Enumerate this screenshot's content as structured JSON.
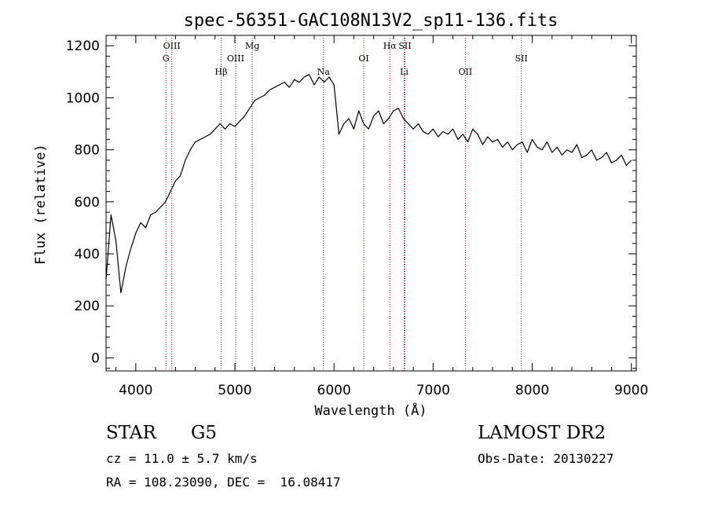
{
  "chart_data": {
    "type": "line",
    "title": "spec-56351-GAC108N13V2_sp11-136.fits",
    "xlabel": "Wavelength (Å)",
    "ylabel": "Flux (relative)",
    "xlim": [
      3700,
      9050
    ],
    "ylim": [
      -50,
      1240
    ],
    "xticks": [
      4000,
      5000,
      6000,
      7000,
      8000,
      9000
    ],
    "yticks": [
      0,
      200,
      400,
      600,
      800,
      1000,
      1200
    ],
    "grid": false,
    "series": [
      {
        "x": [
          3700,
          3750,
          3800,
          3850,
          3900,
          3950,
          4000,
          4050,
          4100,
          4150,
          4200,
          4250,
          4300,
          4350,
          4400,
          4450,
          4500,
          4550,
          4600,
          4650,
          4700,
          4750,
          4800,
          4850,
          4900,
          4950,
          5000,
          5050,
          5100,
          5150,
          5200,
          5250,
          5300,
          5350,
          5400,
          5450,
          5500,
          5550,
          5600,
          5650,
          5700,
          5750,
          5800,
          5850,
          5900,
          5950,
          6000,
          6050,
          6100,
          6150,
          6200,
          6250,
          6300,
          6350,
          6400,
          6450,
          6500,
          6550,
          6600,
          6650,
          6700,
          6750,
          6800,
          6850,
          6900,
          6950,
          7000,
          7050,
          7100,
          7150,
          7200,
          7250,
          7300,
          7350,
          7400,
          7450,
          7500,
          7550,
          7600,
          7650,
          7700,
          7750,
          7800,
          7850,
          7900,
          7950,
          8000,
          8050,
          8100,
          8150,
          8200,
          8250,
          8300,
          8350,
          8400,
          8450,
          8500,
          8550,
          8600,
          8650,
          8700,
          8750,
          8800,
          8850,
          8900,
          8950,
          9000
        ],
        "y": [
          300,
          550,
          450,
          250,
          350,
          420,
          480,
          520,
          500,
          550,
          560,
          580,
          600,
          640,
          680,
          700,
          760,
          800,
          830,
          840,
          850,
          860,
          880,
          900,
          880,
          900,
          890,
          910,
          930,
          960,
          990,
          1000,
          1010,
          1030,
          1040,
          1050,
          1060,
          1040,
          1070,
          1060,
          1080,
          1090,
          1050,
          1080,
          1060,
          1080,
          1050,
          860,
          900,
          920,
          880,
          950,
          900,
          880,
          930,
          950,
          900,
          920,
          950,
          960,
          920,
          900,
          880,
          900,
          870,
          860,
          880,
          850,
          870,
          860,
          880,
          840,
          860,
          830,
          880,
          860,
          820,
          850,
          830,
          840,
          810,
          830,
          800,
          820,
          830,
          790,
          840,
          810,
          800,
          830,
          790,
          810,
          780,
          800,
          790,
          820,
          770,
          780,
          800,
          760,
          770,
          790,
          750,
          760,
          780,
          740,
          760
        ]
      }
    ],
    "lines": [
      {
        "label": "OIII",
        "x": 4363
      },
      {
        "label": "G",
        "x": 4305
      },
      {
        "label": "Hβ",
        "x": 4861
      },
      {
        "label": "OIII",
        "x": 5007
      },
      {
        "label": "Mg",
        "x": 5175
      },
      {
        "label": "Na",
        "x": 5893
      },
      {
        "label": "OI",
        "x": 6300
      },
      {
        "label": "Hα",
        "x": 6563
      },
      {
        "label": "SII",
        "x": 6716
      },
      {
        "label": "Li",
        "x": 6708
      },
      {
        "label": "OII",
        "x": 7325
      },
      {
        "label": "SII",
        "x": 7890
      }
    ]
  },
  "info": {
    "class": "STAR",
    "subclass": "G5",
    "survey": "LAMOST DR2",
    "redshift": "cz = 11.0 ± 5.7 km/s",
    "obs_date": "Obs-Date: 20130227",
    "coords": "RA = 108.23090, DEC =  16.08417"
  }
}
